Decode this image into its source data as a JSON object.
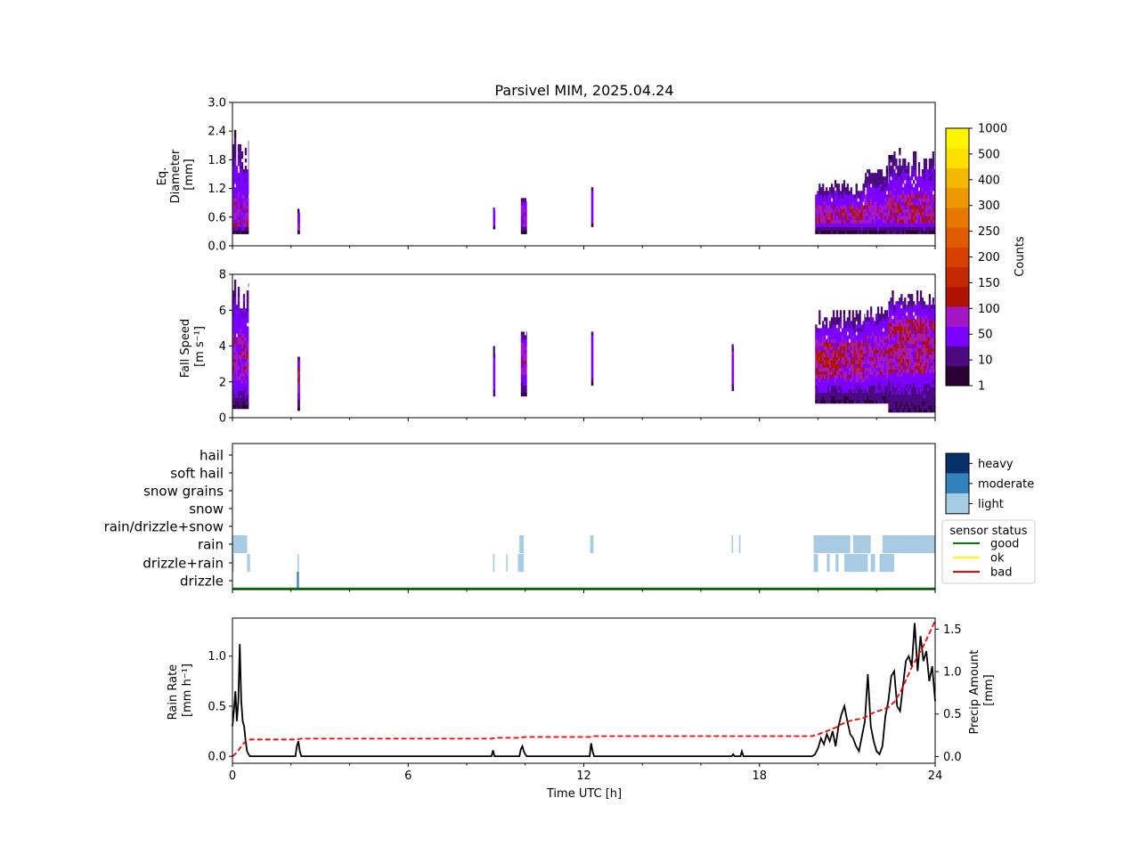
{
  "title": "Parsivel MIM, 2025.04.24",
  "x_axis": {
    "label": "Time UTC [h]",
    "range": [
      0,
      24
    ],
    "ticks": [
      0,
      6,
      12,
      18,
      24
    ],
    "tick_labels": [
      "0",
      "6",
      "12",
      "18",
      "24"
    ]
  },
  "colorbar": {
    "label": "Counts",
    "levels": [
      "1",
      "10",
      "50",
      "100",
      "150",
      "200",
      "250",
      "300",
      "400",
      "500",
      "1000"
    ],
    "colors": [
      "#2b0033",
      "#4b0a80",
      "#7c00ff",
      "#a318c4",
      "#b01200",
      "#c42800",
      "#d64000",
      "#e05c00",
      "#e67800",
      "#ee9800",
      "#f4b800",
      "#ffdf00",
      "#fff400"
    ]
  },
  "precip_type_legend": {
    "entries": [
      {
        "label": "heavy",
        "color": "#08306b"
      },
      {
        "label": "moderate",
        "color": "#3182bd"
      },
      {
        "label": "light",
        "color": "#a6cbe3"
      }
    ]
  },
  "sensor_legend": {
    "title": "sensor status",
    "entries": [
      {
        "label": "good",
        "color": "#008000"
      },
      {
        "label": "ok",
        "color": "#ffff00"
      },
      {
        "label": "bad",
        "color": "#ff0000"
      }
    ]
  },
  "chart_data": [
    {
      "type": "heatmap",
      "panel": "diameter",
      "ylabel_lines": [
        "Eq.",
        "Diameter",
        "[mm]"
      ],
      "ylim": [
        0,
        3.0
      ],
      "y_ticks": [
        0.0,
        0.6,
        1.2,
        1.8,
        2.4,
        3.0
      ],
      "y_tick_labels": [
        "0.0",
        "0.6",
        "1.2",
        "1.8",
        "2.4",
        "3.0"
      ],
      "events": [
        {
          "t0": 0.0,
          "t1": 0.55,
          "ymin": 0.25,
          "ymax": 2.5,
          "core": [
            0.4,
            0.9
          ],
          "peak": "mid"
        },
        {
          "t0": 2.22,
          "t1": 2.3,
          "ymin": 0.25,
          "ymax": 0.75,
          "core": [
            0.3,
            0.5
          ],
          "peak": "high"
        },
        {
          "t0": 8.9,
          "t1": 8.97,
          "ymin": 0.35,
          "ymax": 0.8,
          "core": [
            0.45,
            0.65
          ],
          "peak": "low"
        },
        {
          "t0": 9.85,
          "t1": 10.05,
          "ymin": 0.25,
          "ymax": 1.0,
          "core": [
            0.4,
            0.8
          ],
          "peak": "mid"
        },
        {
          "t0": 12.25,
          "t1": 12.32,
          "ymin": 0.4,
          "ymax": 1.25,
          "core": [
            0.5,
            0.9
          ],
          "peak": "low"
        },
        {
          "t0": 19.9,
          "t1": 21.6,
          "ymin": 0.25,
          "ymax": 1.35,
          "core": [
            0.45,
            0.8
          ],
          "peak": "high"
        },
        {
          "t0": 21.6,
          "t1": 22.4,
          "ymin": 0.25,
          "ymax": 1.65,
          "core": [
            0.45,
            0.9
          ],
          "peak": "mid"
        },
        {
          "t0": 22.4,
          "t1": 24.0,
          "ymin": 0.25,
          "ymax": 2.0,
          "core": [
            0.45,
            1.05
          ],
          "peak": "high"
        }
      ]
    },
    {
      "type": "heatmap",
      "panel": "fallspeed",
      "ylabel_lines": [
        "Fall Speed",
        "[m s⁻¹]"
      ],
      "ylim": [
        0,
        8
      ],
      "y_ticks": [
        0,
        2,
        4,
        6,
        8
      ],
      "y_tick_labels": [
        "0",
        "2",
        "4",
        "6",
        "8"
      ],
      "events": [
        {
          "t0": 0.0,
          "t1": 0.55,
          "ymin": 0.5,
          "ymax": 8.0,
          "core": [
            2.0,
            4.5
          ],
          "peak": "mid"
        },
        {
          "t0": 2.22,
          "t1": 2.3,
          "ymin": 0.4,
          "ymax": 3.5,
          "core": [
            1.5,
            2.8
          ],
          "peak": "high"
        },
        {
          "t0": 8.9,
          "t1": 8.97,
          "ymin": 1.2,
          "ymax": 4.0,
          "core": [
            2.0,
            3.0
          ],
          "peak": "low"
        },
        {
          "t0": 9.85,
          "t1": 10.05,
          "ymin": 1.2,
          "ymax": 5.0,
          "core": [
            2.2,
            4.0
          ],
          "peak": "mid"
        },
        {
          "t0": 12.25,
          "t1": 12.32,
          "ymin": 1.8,
          "ymax": 5.0,
          "core": [
            2.5,
            4.0
          ],
          "peak": "low"
        },
        {
          "t0": 17.05,
          "t1": 17.12,
          "ymin": 1.5,
          "ymax": 4.0,
          "core": [
            2.0,
            3.5
          ],
          "peak": "low"
        },
        {
          "t0": 19.9,
          "t1": 21.6,
          "ymin": 0.8,
          "ymax": 6.0,
          "core": [
            2.0,
            4.2
          ],
          "peak": "high"
        },
        {
          "t0": 21.6,
          "t1": 22.4,
          "ymin": 0.8,
          "ymax": 6.5,
          "core": [
            2.2,
            4.5
          ],
          "peak": "mid"
        },
        {
          "t0": 22.4,
          "t1": 24.0,
          "ymin": 0.3,
          "ymax": 7.0,
          "core": [
            2.5,
            5.5
          ],
          "peak": "high"
        }
      ]
    },
    {
      "type": "heatmap",
      "panel": "precip_type",
      "categories": [
        "hail",
        "soft hail",
        "snow grains",
        "snow",
        "rain/drizzle+snow",
        "rain",
        "drizzle+rain",
        "drizzle"
      ],
      "segments": [
        {
          "type": "rain",
          "t0": 0.0,
          "t1": 0.5,
          "intensity": "light"
        },
        {
          "type": "rain",
          "t0": 9.8,
          "t1": 9.95,
          "intensity": "light"
        },
        {
          "type": "rain",
          "t0": 12.22,
          "t1": 12.33,
          "intensity": "light"
        },
        {
          "type": "rain",
          "t0": 17.05,
          "t1": 17.1,
          "intensity": "light"
        },
        {
          "type": "rain",
          "t0": 17.3,
          "t1": 17.35,
          "intensity": "light"
        },
        {
          "type": "rain",
          "t0": 19.85,
          "t1": 21.1,
          "intensity": "light"
        },
        {
          "type": "rain",
          "t0": 21.2,
          "t1": 21.8,
          "intensity": "light"
        },
        {
          "type": "rain",
          "t0": 22.2,
          "t1": 24.0,
          "intensity": "light"
        },
        {
          "type": "drizzle+rain",
          "t0": 0.0,
          "t1": 0.05,
          "intensity": "light"
        },
        {
          "type": "drizzle+rain",
          "t0": 0.5,
          "t1": 0.6,
          "intensity": "light"
        },
        {
          "type": "drizzle+rain",
          "t0": 2.22,
          "t1": 2.27,
          "intensity": "light"
        },
        {
          "type": "drizzle+rain",
          "t0": 8.9,
          "t1": 8.95,
          "intensity": "light"
        },
        {
          "type": "drizzle+rain",
          "t0": 9.35,
          "t1": 9.4,
          "intensity": "light"
        },
        {
          "type": "drizzle+rain",
          "t0": 9.75,
          "t1": 9.95,
          "intensity": "light"
        },
        {
          "type": "drizzle+rain",
          "t0": 19.85,
          "t1": 20.0,
          "intensity": "light"
        },
        {
          "type": "drizzle+rain",
          "t0": 20.3,
          "t1": 20.4,
          "intensity": "light"
        },
        {
          "type": "drizzle+rain",
          "t0": 20.6,
          "t1": 20.7,
          "intensity": "light"
        },
        {
          "type": "drizzle+rain",
          "t0": 20.9,
          "t1": 21.7,
          "intensity": "light"
        },
        {
          "type": "drizzle+rain",
          "t0": 21.8,
          "t1": 21.95,
          "intensity": "light"
        },
        {
          "type": "drizzle+rain",
          "t0": 22.1,
          "t1": 22.6,
          "intensity": "light"
        },
        {
          "type": "drizzle",
          "t0": 2.2,
          "t1": 2.27,
          "intensity": "moderate"
        }
      ],
      "sensor_status": [
        {
          "t0": 0,
          "t1": 24,
          "status": "good"
        }
      ]
    },
    {
      "type": "line",
      "panel": "rain",
      "ylabel_lines": [
        "Rain Rate",
        "[mm h⁻¹]"
      ],
      "ylim": [
        -0.07,
        1.38
      ],
      "y_ticks": [
        0.0,
        0.5,
        1.0
      ],
      "y_tick_labels": [
        "0.0",
        "0.5",
        "1.0"
      ],
      "y2label_lines": [
        "Precip Amount",
        "[mm]"
      ],
      "y2lim": [
        -0.08,
        1.63
      ],
      "y2_ticks": [
        0.0,
        0.5,
        1.0,
        1.5
      ],
      "y2_tick_labels": [
        "0.0",
        "0.5",
        "1.0",
        "1.5"
      ],
      "series": [
        {
          "style": "solid-black",
          "x": [
            0.0,
            0.05,
            0.1,
            0.15,
            0.2,
            0.25,
            0.3,
            0.35,
            0.4,
            0.45,
            0.5,
            0.55,
            0.6,
            2.15,
            2.2,
            2.25,
            2.3,
            2.35,
            8.85,
            8.9,
            8.95,
            9.8,
            9.85,
            9.9,
            9.95,
            10.0,
            10.05,
            12.2,
            12.25,
            12.3,
            12.35,
            17.05,
            17.1,
            17.15,
            17.35,
            17.4,
            17.45,
            19.8,
            19.9,
            20.0,
            20.1,
            20.2,
            20.3,
            20.4,
            20.5,
            20.6,
            20.7,
            20.8,
            20.9,
            21.0,
            21.1,
            21.2,
            21.3,
            21.4,
            21.5,
            21.6,
            21.7,
            21.8,
            21.9,
            22.0,
            22.1,
            22.2,
            22.3,
            22.4,
            22.5,
            22.6,
            22.7,
            22.8,
            22.9,
            23.0,
            23.1,
            23.2,
            23.3,
            23.4,
            23.5,
            23.6,
            23.7,
            23.8,
            23.9,
            24.0
          ],
          "y": [
            0.3,
            0.45,
            0.65,
            0.35,
            0.55,
            1.12,
            0.55,
            0.35,
            0.3,
            0.15,
            0.05,
            0.02,
            0.0,
            0.0,
            0.1,
            0.15,
            0.05,
            0.0,
            0.0,
            0.06,
            0.0,
            0.0,
            0.07,
            0.1,
            0.05,
            0.02,
            0.0,
            0.0,
            0.13,
            0.05,
            0.0,
            0.0,
            0.02,
            0.0,
            0.0,
            0.05,
            0.0,
            0.0,
            0.02,
            0.08,
            0.18,
            0.12,
            0.22,
            0.15,
            0.25,
            0.1,
            0.3,
            0.42,
            0.5,
            0.35,
            0.22,
            0.18,
            0.1,
            0.05,
            0.2,
            0.35,
            0.82,
            0.3,
            0.15,
            0.05,
            0.02,
            0.1,
            0.4,
            0.55,
            0.8,
            0.85,
            0.5,
            0.45,
            0.7,
            0.95,
            1.0,
            0.9,
            1.33,
            0.85,
            1.2,
            0.95,
            1.05,
            0.75,
            0.9,
            0.55
          ]
        },
        {
          "style": "dashed-red",
          "axis": "y2",
          "x": [
            0.0,
            0.1,
            0.2,
            0.3,
            0.4,
            0.5,
            0.6,
            2.2,
            2.35,
            8.85,
            9.0,
            9.8,
            10.0,
            12.2,
            12.35,
            17.0,
            19.8,
            20.0,
            20.3,
            20.6,
            20.8,
            21.0,
            21.2,
            21.4,
            21.6,
            21.8,
            22.0,
            22.2,
            22.4,
            22.6,
            22.8,
            23.0,
            23.2,
            23.4,
            23.6,
            23.8,
            24.0
          ],
          "y": [
            0.0,
            0.03,
            0.07,
            0.12,
            0.16,
            0.19,
            0.2,
            0.2,
            0.21,
            0.21,
            0.22,
            0.22,
            0.23,
            0.23,
            0.24,
            0.24,
            0.24,
            0.26,
            0.3,
            0.34,
            0.38,
            0.41,
            0.43,
            0.44,
            0.46,
            0.5,
            0.53,
            0.55,
            0.58,
            0.64,
            0.75,
            0.9,
            1.05,
            1.18,
            1.3,
            1.45,
            1.6
          ]
        }
      ]
    }
  ]
}
